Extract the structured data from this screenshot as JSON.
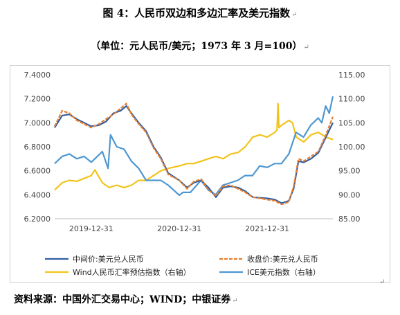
{
  "header": {
    "title": "图 4：人民币双边和多边汇率及美元指数",
    "subtitle": "（单位：元人民币/美元；1973 年 3 月=100）"
  },
  "source_note": "资料来源：中国外汇交易中心；WIND；中银证券",
  "paragraph_mark": "↵",
  "chart_data": {
    "type": "line",
    "x_ticks": [
      "2019-12-31",
      "2020-12-31",
      "2021-12-31"
    ],
    "y_left": {
      "min": 6.2,
      "max": 7.4,
      "ticks": [
        6.2,
        6.4,
        6.6,
        6.8,
        7.0,
        7.2,
        7.4
      ],
      "decimals": 4
    },
    "y_right": {
      "min": 85,
      "max": 115,
      "ticks": [
        85,
        90,
        95,
        100,
        105,
        110,
        115
      ],
      "decimals": 2
    },
    "x_range": [
      "2019-08-01",
      "2022-09-30"
    ],
    "grid": false,
    "legend_position": "bottom",
    "series": [
      {
        "name": "中间价:美元兑人民币",
        "axis": "left",
        "color": "#2e5fa3",
        "style": "solid",
        "points": [
          [
            "2019-08-01",
            6.96
          ],
          [
            "2019-09-01",
            7.06
          ],
          [
            "2019-10-01",
            7.07
          ],
          [
            "2019-11-01",
            7.03
          ],
          [
            "2019-12-31",
            6.97
          ],
          [
            "2020-02-01",
            6.98
          ],
          [
            "2020-03-01",
            7.01
          ],
          [
            "2020-04-01",
            7.08
          ],
          [
            "2020-05-01",
            7.1
          ],
          [
            "2020-05-25",
            7.14
          ],
          [
            "2020-06-15",
            7.08
          ],
          [
            "2020-07-15",
            7.0
          ],
          [
            "2020-08-15",
            6.93
          ],
          [
            "2020-09-15",
            6.8
          ],
          [
            "2020-10-15",
            6.71
          ],
          [
            "2020-11-15",
            6.58
          ],
          [
            "2020-12-31",
            6.52
          ],
          [
            "2021-02-01",
            6.46
          ],
          [
            "2021-03-01",
            6.5
          ],
          [
            "2021-04-01",
            6.52
          ],
          [
            "2021-05-01",
            6.46
          ],
          [
            "2021-06-01",
            6.38
          ],
          [
            "2021-07-01",
            6.46
          ],
          [
            "2021-08-01",
            6.47
          ],
          [
            "2021-09-01",
            6.46
          ],
          [
            "2021-10-01",
            6.43
          ],
          [
            "2021-11-01",
            6.38
          ],
          [
            "2021-12-31",
            6.37
          ],
          [
            "2022-02-01",
            6.36
          ],
          [
            "2022-03-01",
            6.33
          ],
          [
            "2022-03-31",
            6.35
          ],
          [
            "2022-04-20",
            6.45
          ],
          [
            "2022-05-10",
            6.68
          ],
          [
            "2022-06-01",
            6.67
          ],
          [
            "2022-07-01",
            6.7
          ],
          [
            "2022-08-01",
            6.75
          ],
          [
            "2022-09-01",
            6.88
          ],
          [
            "2022-09-30",
            7.0
          ]
        ]
      },
      {
        "name": "收盘价:美元兑人民币",
        "axis": "left",
        "color": "#e87d2c",
        "style": "dashed",
        "points": [
          [
            "2019-08-01",
            6.97
          ],
          [
            "2019-09-01",
            7.1
          ],
          [
            "2019-10-01",
            7.08
          ],
          [
            "2019-11-01",
            7.02
          ],
          [
            "2019-12-31",
            6.96
          ],
          [
            "2020-02-01",
            6.99
          ],
          [
            "2020-03-01",
            7.03
          ],
          [
            "2020-04-01",
            7.07
          ],
          [
            "2020-05-01",
            7.12
          ],
          [
            "2020-05-25",
            7.16
          ],
          [
            "2020-06-15",
            7.07
          ],
          [
            "2020-07-15",
            6.99
          ],
          [
            "2020-08-15",
            6.92
          ],
          [
            "2020-09-15",
            6.79
          ],
          [
            "2020-10-15",
            6.7
          ],
          [
            "2020-11-15",
            6.57
          ],
          [
            "2020-12-31",
            6.52
          ],
          [
            "2021-02-01",
            6.45
          ],
          [
            "2021-03-01",
            6.51
          ],
          [
            "2021-04-01",
            6.53
          ],
          [
            "2021-05-01",
            6.44
          ],
          [
            "2021-06-01",
            6.39
          ],
          [
            "2021-07-01",
            6.47
          ],
          [
            "2021-08-01",
            6.48
          ],
          [
            "2021-09-01",
            6.45
          ],
          [
            "2021-10-01",
            6.42
          ],
          [
            "2021-11-01",
            6.38
          ],
          [
            "2021-12-31",
            6.36
          ],
          [
            "2022-02-01",
            6.35
          ],
          [
            "2022-03-01",
            6.32
          ],
          [
            "2022-03-31",
            6.34
          ],
          [
            "2022-04-20",
            6.47
          ],
          [
            "2022-05-10",
            6.7
          ],
          [
            "2022-06-01",
            6.68
          ],
          [
            "2022-07-01",
            6.72
          ],
          [
            "2022-08-01",
            6.76
          ],
          [
            "2022-09-01",
            6.9
          ],
          [
            "2022-09-30",
            7.05
          ]
        ]
      },
      {
        "name": "Wind人民币汇率预估指数（右轴）",
        "axis": "right",
        "color": "#f2c31a",
        "style": "solid",
        "points": [
          [
            "2019-08-01",
            91.0
          ],
          [
            "2019-09-01",
            92.5
          ],
          [
            "2019-10-01",
            93.0
          ],
          [
            "2019-11-01",
            92.8
          ],
          [
            "2019-12-31",
            94.0
          ],
          [
            "2020-01-15",
            95.2
          ],
          [
            "2020-02-15",
            92.5
          ],
          [
            "2020-03-15",
            91.5
          ],
          [
            "2020-04-15",
            92.0
          ],
          [
            "2020-05-15",
            91.5
          ],
          [
            "2020-06-15",
            92.0
          ],
          [
            "2020-07-15",
            93.0
          ],
          [
            "2020-08-15",
            93.0
          ],
          [
            "2020-09-15",
            94.0
          ],
          [
            "2020-10-15",
            95.0
          ],
          [
            "2020-11-15",
            95.5
          ],
          [
            "2020-12-31",
            96.0
          ],
          [
            "2021-02-01",
            96.5
          ],
          [
            "2021-03-01",
            96.5
          ],
          [
            "2021-04-01",
            97.0
          ],
          [
            "2021-05-01",
            97.5
          ],
          [
            "2021-06-01",
            98.0
          ],
          [
            "2021-07-01",
            97.5
          ],
          [
            "2021-08-01",
            98.5
          ],
          [
            "2021-09-01",
            98.8
          ],
          [
            "2021-10-01",
            100.0
          ],
          [
            "2021-11-01",
            102.0
          ],
          [
            "2021-12-01",
            102.5
          ],
          [
            "2021-12-31",
            102.0
          ],
          [
            "2022-01-15",
            102.5
          ],
          [
            "2022-02-01",
            103.0
          ],
          [
            "2022-02-10",
            103.5
          ],
          [
            "2022-02-14",
            109.0
          ],
          [
            "2022-02-18",
            104.0
          ],
          [
            "2022-03-01",
            104.5
          ],
          [
            "2022-03-31",
            105.5
          ],
          [
            "2022-04-15",
            105.0
          ],
          [
            "2022-05-01",
            102.0
          ],
          [
            "2022-06-01",
            101.0
          ],
          [
            "2022-07-01",
            102.5
          ],
          [
            "2022-08-01",
            103.0
          ],
          [
            "2022-09-01",
            102.0
          ],
          [
            "2022-09-30",
            101.5
          ]
        ]
      },
      {
        "name": "ICE美元指数（右轴）",
        "axis": "right",
        "color": "#4e97d1",
        "style": "solid",
        "points": [
          [
            "2019-08-01",
            96.5
          ],
          [
            "2019-09-01",
            98.0
          ],
          [
            "2019-10-01",
            98.5
          ],
          [
            "2019-11-01",
            97.5
          ],
          [
            "2019-12-01",
            98.0
          ],
          [
            "2019-12-31",
            96.8
          ],
          [
            "2020-01-15",
            97.5
          ],
          [
            "2020-02-15",
            99.0
          ],
          [
            "2020-03-10",
            95.5
          ],
          [
            "2020-03-20",
            102.5
          ],
          [
            "2020-04-15",
            100.0
          ],
          [
            "2020-05-15",
            99.5
          ],
          [
            "2020-06-15",
            97.0
          ],
          [
            "2020-07-15",
            95.5
          ],
          [
            "2020-08-15",
            93.0
          ],
          [
            "2020-09-15",
            93.0
          ],
          [
            "2020-10-15",
            93.0
          ],
          [
            "2020-11-15",
            92.0
          ],
          [
            "2020-12-31",
            89.9
          ],
          [
            "2021-01-15",
            90.5
          ],
          [
            "2021-02-15",
            90.5
          ],
          [
            "2021-03-31",
            93.0
          ],
          [
            "2021-04-30",
            91.0
          ],
          [
            "2021-05-31",
            90.0
          ],
          [
            "2021-06-30",
            92.0
          ],
          [
            "2021-07-31",
            92.5
          ],
          [
            "2021-08-31",
            93.0
          ],
          [
            "2021-09-30",
            94.0
          ],
          [
            "2021-10-31",
            94.0
          ],
          [
            "2021-11-30",
            96.0
          ],
          [
            "2021-12-31",
            95.7
          ],
          [
            "2022-01-31",
            96.5
          ],
          [
            "2022-02-28",
            96.5
          ],
          [
            "2022-03-31",
            98.5
          ],
          [
            "2022-04-30",
            103.0
          ],
          [
            "2022-05-31",
            102.0
          ],
          [
            "2022-06-30",
            104.5
          ],
          [
            "2022-07-31",
            106.0
          ],
          [
            "2022-08-15",
            105.0
          ],
          [
            "2022-08-31",
            108.5
          ],
          [
            "2022-09-15",
            107.0
          ],
          [
            "2022-09-30",
            110.5
          ]
        ]
      }
    ]
  }
}
